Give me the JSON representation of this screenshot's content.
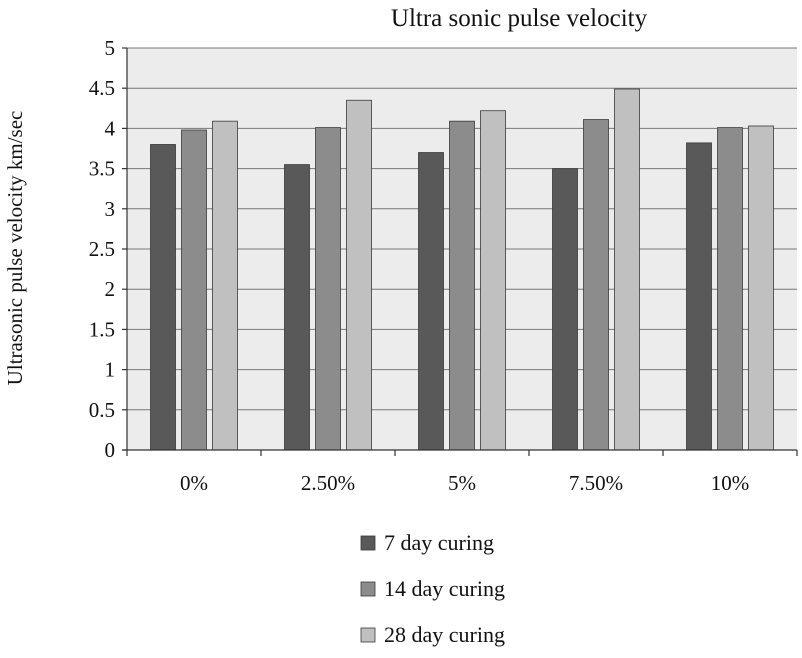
{
  "chart_data": {
    "type": "bar",
    "title": "Ultra sonic pulse velocity",
    "xlabel": "",
    "ylabel": "Ultrasonic pulse velocity km/sec",
    "ylim": [
      0,
      5
    ],
    "yticks": [
      0,
      0.5,
      1,
      1.5,
      2,
      2.5,
      3,
      3.5,
      4,
      4.5,
      5
    ],
    "ytick_labels": [
      "0",
      "0.5",
      "1",
      "1.5",
      "2",
      "2.5",
      "3",
      "3.5",
      "4",
      "4.5",
      "5"
    ],
    "grid": true,
    "legend_position": "bottom",
    "categories": [
      "0%",
      "2.50%",
      "5%",
      "7.50%",
      "10%"
    ],
    "series": [
      {
        "name": "7 day curing",
        "color": "#595959",
        "values": [
          3.8,
          3.55,
          3.7,
          3.5,
          3.82
        ]
      },
      {
        "name": "14 day curing",
        "color": "#8c8c8c",
        "values": [
          3.98,
          4.01,
          4.09,
          4.11,
          4.01
        ]
      },
      {
        "name": "28 day curing",
        "color": "#c0c0c0",
        "values": [
          4.09,
          4.35,
          4.22,
          4.49,
          4.03
        ]
      }
    ],
    "plot_background": "#ececec",
    "gridline_color": "#777777"
  }
}
